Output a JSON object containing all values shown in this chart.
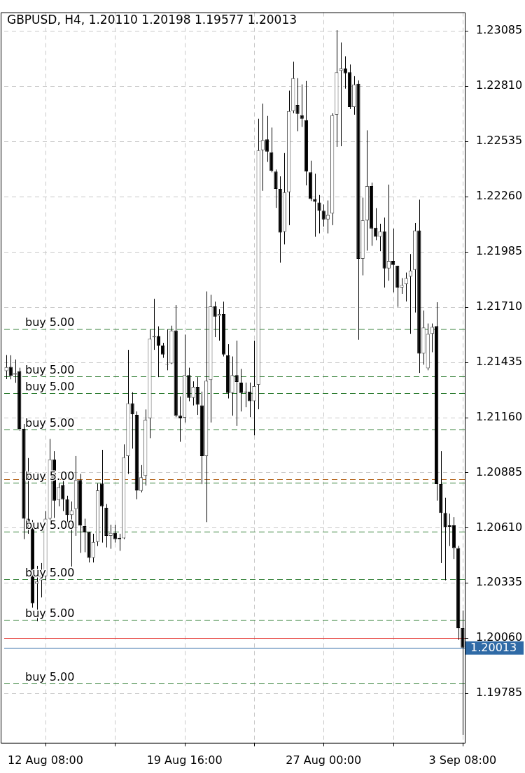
{
  "chart_data": {
    "type": "candlestick",
    "title": "GBPUSD, H4, 1.20110 1.20198 1.19577 1.20013",
    "categories": [
      null,
      null,
      null,
      null,
      null,
      null,
      null,
      null,
      null,
      "12 Aug 08:00",
      null,
      null,
      null,
      null,
      null,
      null,
      null,
      null,
      null,
      null,
      null,
      null,
      null,
      null,
      null,
      null,
      null,
      null,
      null,
      null,
      null,
      null,
      null,
      null,
      null,
      null,
      null,
      null,
      null,
      null,
      null,
      "19 Aug 16:00",
      null,
      null,
      null,
      null,
      null,
      null,
      null,
      null,
      null,
      null,
      null,
      null,
      null,
      null,
      null,
      null,
      null,
      null,
      null,
      null,
      null,
      null,
      null,
      null,
      null,
      null,
      null,
      null,
      null,
      null,
      null,
      "27 Aug 00:00",
      null,
      null,
      null,
      null,
      null,
      null,
      null,
      null,
      null,
      null,
      null,
      null,
      null,
      null,
      null,
      null,
      null,
      null,
      null,
      null,
      null,
      null,
      null,
      null,
      null,
      null,
      null,
      null,
      null,
      null,
      null,
      "3 Sep 08:00"
    ],
    "ohlc": [
      [
        1.2139,
        1.2147,
        1.2135,
        1.2141
      ],
      [
        1.21411,
        1.21469,
        1.21349,
        1.21366
      ],
      [
        1.21373,
        1.21448,
        1.21332,
        1.2138
      ],
      [
        1.2139,
        1.21407,
        1.21093,
        1.21103
      ],
      [
        1.21103,
        1.21127,
        1.20553,
        1.20655
      ],
      [
        1.20655,
        1.20957,
        1.2058,
        1.20631
      ],
      [
        1.20631,
        1.20648,
        1.20212,
        1.20233
      ],
      [
        1.20331,
        1.2042,
        1.20144,
        1.20342
      ],
      [
        1.20348,
        1.20434,
        1.20263,
        1.20372
      ],
      [
        1.20368,
        1.20693,
        1.20348,
        1.20655
      ],
      [
        1.20655,
        1.21052,
        1.20631,
        1.2095
      ],
      [
        1.2095,
        1.20991,
        1.20659,
        1.20745
      ],
      [
        1.20748,
        1.2083,
        1.20717,
        1.20813
      ],
      [
        1.20823,
        1.20844,
        1.20693,
        1.20752
      ],
      [
        1.20752,
        1.20769,
        1.20615,
        1.20673
      ],
      [
        1.20673,
        1.20741,
        1.20417,
        1.20697
      ],
      [
        1.20704,
        1.20967,
        1.2057,
        1.20847
      ],
      [
        1.20847,
        1.20878,
        1.20485,
        1.20621
      ],
      [
        1.20618,
        1.20655,
        1.20488,
        1.20587
      ],
      [
        1.2059,
        1.2059,
        1.20437,
        1.2046
      ],
      [
        1.2046,
        1.2058,
        1.20437,
        1.20539
      ],
      [
        1.20539,
        1.2083,
        1.20519,
        1.20796
      ],
      [
        1.2083,
        1.20998,
        1.20536,
        1.20717
      ],
      [
        1.2071,
        1.20728,
        1.20512,
        1.2057
      ],
      [
        1.2057,
        1.20625,
        1.20505,
        1.20584
      ],
      [
        1.20584,
        1.20625,
        1.20536,
        1.20553
      ],
      [
        1.2056,
        1.2058,
        1.20495,
        1.20553
      ],
      [
        1.20557,
        1.21025,
        1.20553,
        1.20961
      ],
      [
        1.20967,
        1.21496,
        1.20878,
        1.2123
      ],
      [
        1.2123,
        1.21285,
        1.21004,
        1.21175
      ],
      [
        1.21172,
        1.21189,
        1.20752,
        1.20796
      ],
      [
        1.20793,
        1.20922,
        1.20786,
        1.20861
      ],
      [
        1.20868,
        1.21199,
        1.2082,
        1.21148
      ],
      [
        1.21155,
        1.21596,
        1.21056,
        1.21551
      ],
      [
        1.21558,
        1.2175,
        1.21496,
        1.21565
      ],
      [
        1.21565,
        1.21613,
        1.2136,
        1.21517
      ],
      [
        1.21517,
        1.21531,
        1.21456,
        1.21473
      ],
      [
        1.21422,
        1.21599,
        1.21394,
        1.21425
      ],
      [
        1.21428,
        1.21616,
        1.21425,
        1.21592
      ],
      [
        1.21592,
        1.21719,
        1.21161,
        1.21168
      ],
      [
        1.21168,
        1.21264,
        1.21038,
        1.21155
      ],
      [
        1.21158,
        1.21572,
        1.21134,
        1.2137
      ],
      [
        1.2137,
        1.21407,
        1.2124,
        1.21257
      ],
      [
        1.21257,
        1.21339,
        1.21219,
        1.21312
      ],
      [
        1.21312,
        1.2136,
        1.21172,
        1.21223
      ],
      [
        1.21219,
        1.21288,
        1.20827,
        1.20967
      ],
      [
        1.20967,
        1.21787,
        1.20638,
        1.21342
      ],
      [
        1.21346,
        1.2177,
        1.21134,
        1.21712
      ],
      [
        1.21712,
        1.21736,
        1.21559,
        1.21661
      ],
      [
        1.21664,
        1.21698,
        1.21542,
        1.21674
      ],
      [
        1.21674,
        1.21736,
        1.21463,
        1.21473
      ],
      [
        1.21469,
        1.21524,
        1.21254,
        1.21281
      ],
      [
        1.21281,
        1.21463,
        1.21168,
        1.2137
      ],
      [
        1.2137,
        1.21542,
        1.21117,
        1.21336
      ],
      [
        1.21333,
        1.21401,
        1.21189,
        1.21281
      ],
      [
        1.21288,
        1.21333,
        1.2121,
        1.21285
      ],
      [
        1.21288,
        1.21333,
        1.21161,
        1.2124
      ],
      [
        1.2124,
        1.21542,
        1.2107,
        1.21315
      ],
      [
        1.21322,
        1.22647,
        1.212,
        1.2249
      ],
      [
        1.2249,
        1.22722,
        1.22288,
        1.22541
      ],
      [
        1.22544,
        1.22661,
        1.22432,
        1.22483
      ],
      [
        1.2248,
        1.22603,
        1.2238,
        1.22387
      ],
      [
        1.22384,
        1.22394,
        1.22203,
        1.22298
      ],
      [
        1.22298,
        1.2236,
        1.2193,
        1.2208
      ],
      [
        1.22083,
        1.22476,
        1.22021,
        1.22281
      ],
      [
        1.22281,
        1.22787,
        1.22117,
        1.22685
      ],
      [
        1.22685,
        1.22931,
        1.22674,
        1.22849
      ],
      [
        1.22716,
        1.22849,
        1.22585,
        1.22671
      ],
      [
        1.22664,
        1.22818,
        1.22606,
        1.22647
      ],
      [
        1.2264,
        1.22835,
        1.22315,
        1.22384
      ],
      [
        1.2238,
        1.22438,
        1.22237,
        1.22247
      ],
      [
        1.22247,
        1.22373,
        1.22059,
        1.22233
      ],
      [
        1.2223,
        1.22267,
        1.22076,
        1.22189
      ],
      [
        1.22189,
        1.2222,
        1.2211,
        1.22145
      ],
      [
        1.22145,
        1.2224,
        1.22076,
        1.22169
      ],
      [
        1.22175,
        1.22674,
        1.22117,
        1.22664
      ],
      [
        1.22667,
        1.23088,
        1.22507,
        1.22879
      ],
      [
        1.22886,
        1.23027,
        1.2251,
        1.22897
      ],
      [
        1.22897,
        1.22958,
        1.22797,
        1.22873
      ],
      [
        1.22879,
        1.22917,
        1.22695,
        1.22705
      ],
      [
        1.22705,
        1.22859,
        1.22667,
        1.22818
      ],
      [
        1.22821,
        1.22838,
        1.21546,
        1.21949
      ],
      [
        1.21949,
        1.22254,
        1.21867,
        1.22141
      ],
      [
        1.22141,
        1.22589,
        1.2199,
        1.22312
      ],
      [
        1.22312,
        1.22329,
        1.22014,
        1.221
      ],
      [
        1.22103,
        1.22202,
        1.22042,
        1.22059
      ],
      [
        1.22059,
        1.22124,
        1.21987,
        1.22086
      ],
      [
        1.22086,
        1.22155,
        1.21806,
        1.21901
      ],
      [
        1.21901,
        1.22319,
        1.2184,
        1.21939
      ],
      [
        1.21939,
        1.221,
        1.21782,
        1.21919
      ],
      [
        1.21915,
        1.21915,
        1.2171,
        1.21806
      ],
      [
        1.21806,
        1.21853,
        1.21775,
        1.21819
      ],
      [
        1.21823,
        1.21881,
        1.21737,
        1.21853
      ],
      [
        1.2186,
        1.21973,
        1.21576,
        1.21891
      ],
      [
        1.21894,
        1.22127,
        1.21682,
        1.2209
      ],
      [
        1.2209,
        1.22244,
        1.21381,
        1.21477
      ],
      [
        1.21477,
        1.21692,
        1.21422,
        1.21607
      ],
      [
        1.21404,
        1.21627,
        1.21394,
        1.21576
      ],
      [
        1.21576,
        1.21627,
        1.21484,
        1.2161
      ],
      [
        1.21614,
        1.21733,
        1.20745,
        1.20827
      ],
      [
        1.20827,
        1.20991,
        1.20434,
        1.20684
      ],
      [
        1.20684,
        1.20759,
        1.20348,
        1.20615
      ],
      [
        1.20622,
        1.2068,
        1.20519,
        1.20615
      ],
      [
        1.20622,
        1.20663,
        1.20454,
        1.20509
      ],
      [
        1.20509,
        1.2052,
        1.20051,
        1.2011
      ],
      [
        1.2011,
        1.20198,
        1.19577,
        1.20013
      ]
    ],
    "ylim": [
      1.19539,
      1.23177
    ],
    "yticks": [
      {
        "value": 1.19785,
        "label": "1.19785"
      },
      {
        "value": 1.2006,
        "label": "1.20060"
      },
      {
        "value": 1.20335,
        "label": "1.20335"
      },
      {
        "value": 1.2061,
        "label": "1.20610"
      },
      {
        "value": 1.20885,
        "label": "1.20885"
      },
      {
        "value": 1.2116,
        "label": "1.21160"
      },
      {
        "value": 1.21435,
        "label": "1.21435"
      },
      {
        "value": 1.2171,
        "label": "1.21710"
      },
      {
        "value": 1.21985,
        "label": "1.21985"
      },
      {
        "value": 1.2226,
        "label": "1.22260"
      },
      {
        "value": 1.22535,
        "label": "1.22535"
      },
      {
        "value": 1.2281,
        "label": "1.22810"
      },
      {
        "value": 1.23085,
        "label": "1.23085"
      }
    ],
    "grid": true,
    "ref_lines": [
      {
        "axis": "y",
        "value": 1.21602,
        "label": "buy 5.00",
        "color": "#2e7d32",
        "line_style": "dashed"
      },
      {
        "axis": "y",
        "value": 1.21363,
        "label": "buy 5.00",
        "color": "#2e7d32",
        "line_style": "dashed"
      },
      {
        "axis": "y",
        "value": 1.21281,
        "label": "buy 5.00",
        "color": "#2e7d32",
        "line_style": "dashed"
      },
      {
        "axis": "y",
        "value": 1.211,
        "label": "buy 5.00",
        "color": "#2e7d32",
        "line_style": "dashed"
      },
      {
        "axis": "y",
        "value": 1.20851,
        "color": "#b5651d",
        "line_style": "dashed"
      },
      {
        "axis": "y",
        "value": 1.20834,
        "label": "buy 5.00",
        "color": "#2e7d32",
        "line_style": "dashed"
      },
      {
        "axis": "y",
        "value": 1.2059,
        "label": "buy 5.00",
        "color": "#2e7d32",
        "line_style": "dashed"
      },
      {
        "axis": "y",
        "value": 1.20355,
        "label": "buy 5.00",
        "color": "#2e7d32",
        "line_style": "dashed"
      },
      {
        "axis": "y",
        "value": 1.2015,
        "label": "buy 5.00",
        "color": "#2e7d32",
        "line_style": "dashed"
      },
      {
        "axis": "y",
        "value": 1.19836,
        "label": "buy 5.00",
        "color": "#2e7d32",
        "line_style": "dashed"
      },
      {
        "axis": "y",
        "value": 1.2006,
        "color": "#e53935",
        "line_style": "solid"
      },
      {
        "axis": "y",
        "value": 1.20013,
        "label": "1.20013",
        "color": "#2f6aa6",
        "line_style": "solid"
      }
    ],
    "legend": false
  }
}
